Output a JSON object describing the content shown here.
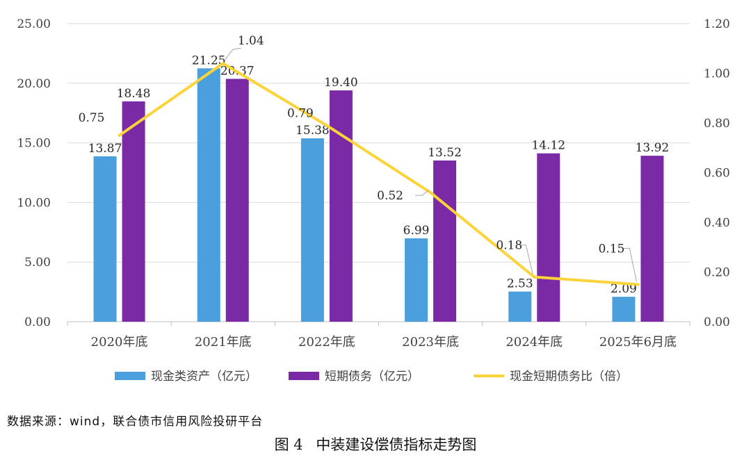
{
  "chart_data": {
    "type": "bar",
    "categories": [
      "2020年底",
      "2021年底",
      "2022年底",
      "2023年底",
      "2024年底",
      "2025年6月底"
    ],
    "series": [
      {
        "name": "现金类资产（亿元）",
        "kind": "bar",
        "axis": "left",
        "color": "#4a9fdc",
        "values": [
          13.87,
          21.25,
          15.38,
          6.99,
          2.53,
          2.09
        ],
        "labels": [
          "13.87",
          "21.25",
          "15.38",
          "6.99",
          "2.53",
          "2.09"
        ]
      },
      {
        "name": "短期债务（亿元）",
        "kind": "bar",
        "axis": "left",
        "color": "#7b2aa6",
        "values": [
          18.48,
          20.37,
          19.4,
          13.52,
          14.12,
          13.92
        ],
        "labels": [
          "18.48",
          "20.37",
          "19.40",
          "13.52",
          "14.12",
          "13.92"
        ]
      },
      {
        "name": "现金短期债务比（倍）",
        "kind": "line",
        "axis": "right",
        "color": "#fcd43a",
        "values": [
          0.75,
          1.04,
          0.79,
          0.52,
          0.18,
          0.15
        ],
        "labels": [
          "0.75",
          "1.04",
          "0.79",
          "0.52",
          "0.18",
          "0.15"
        ]
      }
    ],
    "left_axis": {
      "min": 0,
      "max": 25,
      "ticks": [
        "0.00",
        "5.00",
        "10.00",
        "15.00",
        "20.00",
        "25.00"
      ]
    },
    "right_axis": {
      "min": 0,
      "max": 1.2,
      "ticks": [
        "0.00",
        "0.20",
        "0.40",
        "0.60",
        "0.80",
        "1.00",
        "1.20"
      ]
    },
    "grid": true,
    "legend_position": "bottom"
  },
  "source": "数据来源：wind，联合债市信用风险投研平台",
  "caption": {
    "figure": "图 4",
    "title": "中装建设偿债指标走势图"
  }
}
